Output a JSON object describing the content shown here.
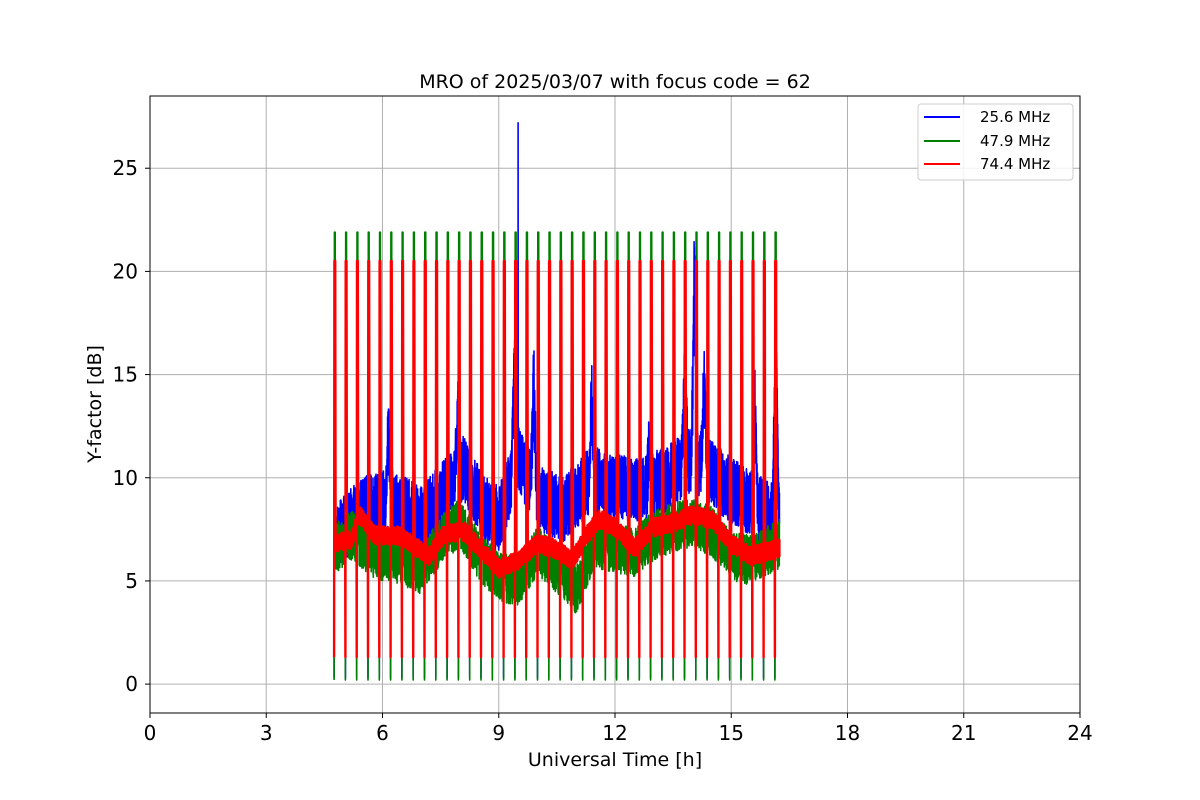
{
  "chart_data": {
    "type": "line",
    "title": "MRO of 2025/03/07 with focus code = 62",
    "xlabel": "Universal Time [h]",
    "ylabel": "Y-factor [dB]",
    "xlim": [
      0,
      24
    ],
    "ylim": [
      -1.4,
      28.5
    ],
    "xticks": [
      "0",
      "3",
      "6",
      "9",
      "12",
      "15",
      "18",
      "21",
      "24"
    ],
    "yticks": [
      "0",
      "5",
      "10",
      "15",
      "20",
      "25"
    ],
    "grid": true,
    "legend_position": "top-right",
    "data_range_hours": [
      4.75,
      16.25
    ],
    "calibration_period_hours": 0.2917,
    "series": [
      {
        "name": "25.6 MHz",
        "color": "#0000ff",
        "calibration_high": 20.4,
        "calibration_low": 0.3,
        "spike": {
          "x": 9.5,
          "y": 27.2
        },
        "baseline_profile": [
          [
            4.75,
            7.0
          ],
          [
            5.5,
            8.5
          ],
          [
            6.2,
            8.8
          ],
          [
            7.0,
            8.0
          ],
          [
            7.7,
            9.5
          ],
          [
            8.1,
            10.5
          ],
          [
            8.6,
            8.5
          ],
          [
            9.0,
            8.0
          ],
          [
            9.5,
            11.0
          ],
          [
            10.0,
            9.0
          ],
          [
            10.7,
            8.5
          ],
          [
            11.4,
            10.0
          ],
          [
            12.0,
            9.5
          ],
          [
            12.8,
            9.5
          ],
          [
            13.4,
            10.0
          ],
          [
            14.0,
            11.0
          ],
          [
            14.6,
            10.0
          ],
          [
            15.3,
            9.0
          ],
          [
            16.25,
            8.0
          ]
        ],
        "peaks": [
          {
            "x": 6.15,
            "y": 13.0
          },
          {
            "x": 7.95,
            "y": 15.2
          },
          {
            "x": 9.4,
            "y": 17.8
          },
          {
            "x": 9.9,
            "y": 16.1
          },
          {
            "x": 11.4,
            "y": 14.9
          },
          {
            "x": 12.9,
            "y": 12.3
          },
          {
            "x": 13.8,
            "y": 16.3
          },
          {
            "x": 14.05,
            "y": 22.0
          },
          {
            "x": 14.3,
            "y": 16.0
          },
          {
            "x": 15.6,
            "y": 15.7
          },
          {
            "x": 16.15,
            "y": 19.6
          }
        ]
      },
      {
        "name": "47.9 MHz",
        "color": "#008000",
        "calibration_high": 21.9,
        "calibration_low": 0.2,
        "baseline_profile": [
          [
            4.75,
            6.5
          ],
          [
            5.2,
            7.2
          ],
          [
            5.8,
            6.3
          ],
          [
            6.5,
            6.0
          ],
          [
            7.0,
            5.5
          ],
          [
            7.5,
            7.0
          ],
          [
            8.0,
            7.8
          ],
          [
            8.5,
            6.2
          ],
          [
            9.0,
            5.2
          ],
          [
            9.5,
            5.0
          ],
          [
            10.0,
            6.5
          ],
          [
            10.5,
            5.6
          ],
          [
            11.0,
            4.6
          ],
          [
            11.5,
            6.8
          ],
          [
            12.0,
            6.6
          ],
          [
            12.5,
            6.4
          ],
          [
            13.0,
            7.2
          ],
          [
            13.5,
            7.6
          ],
          [
            14.0,
            7.8
          ],
          [
            14.5,
            7.4
          ],
          [
            15.0,
            6.2
          ],
          [
            15.5,
            6.0
          ],
          [
            16.25,
            6.8
          ]
        ]
      },
      {
        "name": "74.4 MHz",
        "color": "#ff0000",
        "calibration_high": 20.5,
        "calibration_low": 1.3,
        "baseline_profile": [
          [
            4.75,
            6.8
          ],
          [
            5.2,
            7.0
          ],
          [
            5.4,
            8.2
          ],
          [
            5.8,
            7.2
          ],
          [
            6.4,
            7.2
          ],
          [
            6.9,
            6.6
          ],
          [
            7.2,
            6.2
          ],
          [
            7.6,
            7.3
          ],
          [
            8.1,
            7.4
          ],
          [
            8.5,
            6.6
          ],
          [
            9.0,
            5.6
          ],
          [
            9.5,
            6.0
          ],
          [
            10.0,
            6.8
          ],
          [
            10.4,
            6.6
          ],
          [
            10.9,
            6.0
          ],
          [
            11.3,
            7.3
          ],
          [
            11.6,
            8.0
          ],
          [
            12.0,
            7.6
          ],
          [
            12.5,
            6.6
          ],
          [
            13.0,
            7.6
          ],
          [
            13.5,
            7.8
          ],
          [
            14.0,
            8.2
          ],
          [
            14.5,
            8.0
          ],
          [
            15.0,
            6.8
          ],
          [
            15.5,
            6.2
          ],
          [
            16.25,
            6.6
          ]
        ]
      }
    ]
  }
}
